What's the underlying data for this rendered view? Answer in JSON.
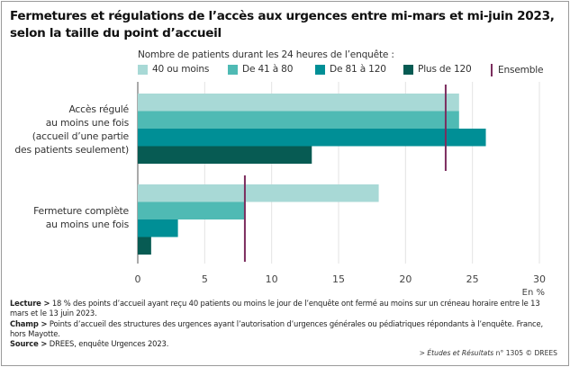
{
  "title_line1": "Fermetures et régulations de l’accès aux urgences entre mi-mars et mi-juin 2023,",
  "title_line2": "selon la taille du point d’accueil",
  "chart_data": {
    "type": "bar",
    "orientation": "horizontal",
    "title": "Fermetures et régulations de l’accès aux urgences entre mi-mars et mi-juin 2023, selon la taille du point d’accueil",
    "legend_title": "Nombre de patients durant les 24 heures de l’enquête :",
    "legend_position": "top",
    "categories": [
      [
        "Accès régulé",
        "au moins une fois",
        "(accueil d’une partie",
        "des patients seulement)"
      ],
      [
        "Fermeture complète",
        "au moins une fois"
      ]
    ],
    "series": [
      {
        "name": "40 ou moins",
        "color": "#a8d9d6",
        "values": [
          24,
          18
        ]
      },
      {
        "name": "De 41 à 80",
        "color": "#4fbab4",
        "values": [
          24,
          8
        ]
      },
      {
        "name": "De 81 à 120",
        "color": "#008f96",
        "values": [
          26,
          3
        ]
      },
      {
        "name": "Plus de 120",
        "color": "#075b53",
        "values": [
          13,
          1
        ]
      }
    ],
    "reference": {
      "name": "Ensemble",
      "color": "#7b2d5e",
      "values": [
        23,
        8
      ]
    },
    "xlim": [
      0,
      30
    ],
    "xticks": [
      "0",
      "5",
      "10",
      "15",
      "20",
      "25",
      "30"
    ],
    "xunit": "En %",
    "grid": true
  },
  "notes": {
    "lecture_label": "Lecture >",
    "lecture_text": " 18 % des points d’accueil ayant reçu 40 patients ou moins le jour de l’enquête ont fermé au moins sur un créneau horaire entre le 13 mars et le 13 juin 2023.",
    "champ_label": "Champ >",
    "champ_text": " Points d’accueil des structures des urgences ayant l’autorisation d’urgences générales ou pédiatriques répondants à l’enquête. France, hors Mayotte.",
    "source_label": "Source >",
    "source_text": " DREES, enquête Urgences 2023."
  },
  "credit": {
    "prefix": "> ",
    "publication": "Études et Résultats",
    "suffix": " n° 1305 © DREES"
  }
}
